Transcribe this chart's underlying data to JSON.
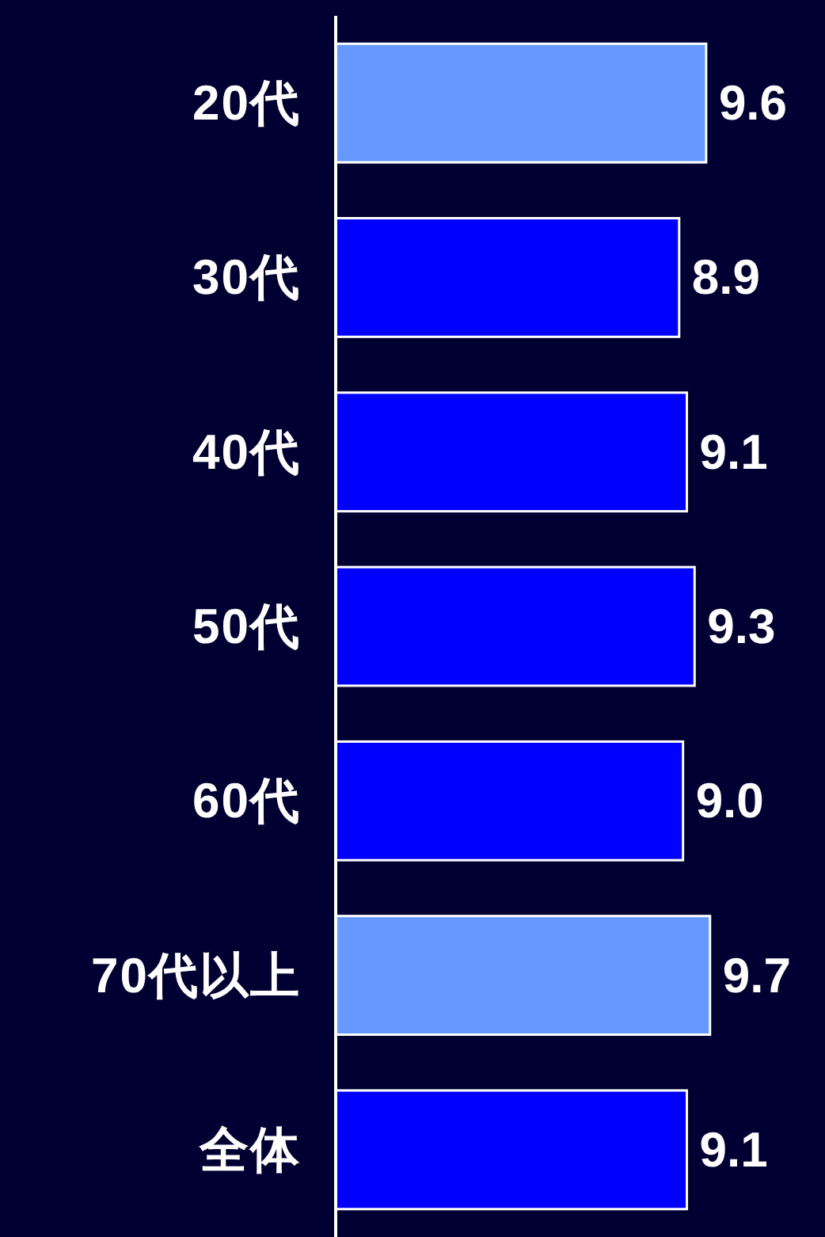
{
  "chart_data": {
    "type": "bar",
    "orientation": "horizontal",
    "categories": [
      "20代",
      "30代",
      "40代",
      "50代",
      "60代",
      "70代以上",
      "全体"
    ],
    "values": [
      9.6,
      8.9,
      9.1,
      9.3,
      9.0,
      9.7,
      9.1
    ],
    "value_labels": [
      "9.6",
      "8.9",
      "9.1",
      "9.3",
      "9.0",
      "9.7",
      "9.1"
    ],
    "colors": [
      "#6699ff",
      "#0000ff",
      "#0000ff",
      "#0000ff",
      "#0000ff",
      "#6699ff",
      "#0000ff"
    ]
  }
}
